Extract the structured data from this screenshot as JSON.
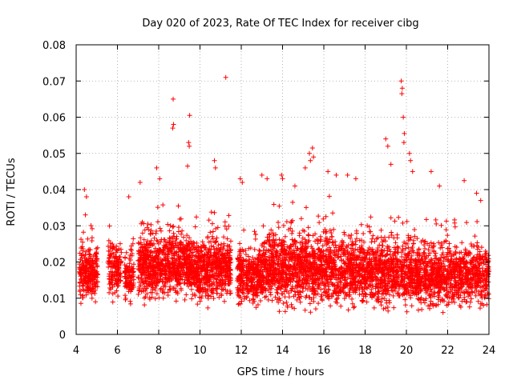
{
  "chart_data": {
    "type": "scatter",
    "title": "Day 020 of 2023, Rate Of TEC Index for receiver cibg",
    "xlabel": "GPS time / hours",
    "ylabel": "ROTI / TECUs",
    "xlim": [
      4,
      24
    ],
    "ylim": [
      0,
      0.08
    ],
    "xticks": [
      "4",
      "6",
      "8",
      "10",
      "12",
      "14",
      "16",
      "18",
      "20",
      "22",
      "24"
    ],
    "yticks": [
      "0",
      "0.01",
      "0.02",
      "0.03",
      "0.04",
      "0.05",
      "0.06",
      "0.07",
      "0.08"
    ],
    "grid": true,
    "marker": "+",
    "color": "#ff0000",
    "series": [
      {
        "name": "ROTI",
        "segments": [
          {
            "x0": 4.15,
            "x1": 5.05,
            "base": 0.017,
            "spread": 0.007,
            "n": 260
          },
          {
            "x0": 5.55,
            "x1": 6.2,
            "base": 0.018,
            "spread": 0.007,
            "n": 150
          },
          {
            "x0": 6.35,
            "x1": 6.8,
            "base": 0.016,
            "spread": 0.006,
            "n": 110
          },
          {
            "x0": 7.0,
            "x1": 9.5,
            "base": 0.019,
            "spread": 0.008,
            "n": 800
          },
          {
            "x0": 9.5,
            "x1": 11.5,
            "base": 0.018,
            "spread": 0.008,
            "n": 650
          },
          {
            "x0": 11.8,
            "x1": 13.0,
            "base": 0.016,
            "spread": 0.007,
            "n": 360
          },
          {
            "x0": 13.0,
            "x1": 16.5,
            "base": 0.018,
            "spread": 0.009,
            "n": 1050
          },
          {
            "x0": 16.5,
            "x1": 20.5,
            "base": 0.017,
            "spread": 0.009,
            "n": 1100
          },
          {
            "x0": 20.5,
            "x1": 24.0,
            "base": 0.016,
            "spread": 0.008,
            "n": 950
          }
        ],
        "spikes": [
          {
            "x": 4.4,
            "y": 0.04
          },
          {
            "x": 4.5,
            "y": 0.038
          },
          {
            "x": 4.45,
            "y": 0.033
          },
          {
            "x": 6.55,
            "y": 0.038
          },
          {
            "x": 7.1,
            "y": 0.042
          },
          {
            "x": 7.9,
            "y": 0.046
          },
          {
            "x": 8.05,
            "y": 0.043
          },
          {
            "x": 8.7,
            "y": 0.065
          },
          {
            "x": 8.72,
            "y": 0.058
          },
          {
            "x": 8.68,
            "y": 0.057
          },
          {
            "x": 9.4,
            "y": 0.0465
          },
          {
            "x": 9.5,
            "y": 0.0605
          },
          {
            "x": 9.45,
            "y": 0.053
          },
          {
            "x": 9.48,
            "y": 0.052
          },
          {
            "x": 10.7,
            "y": 0.048
          },
          {
            "x": 10.75,
            "y": 0.046
          },
          {
            "x": 11.25,
            "y": 0.071
          },
          {
            "x": 11.95,
            "y": 0.043
          },
          {
            "x": 12.05,
            "y": 0.042
          },
          {
            "x": 13.0,
            "y": 0.044
          },
          {
            "x": 13.25,
            "y": 0.043
          },
          {
            "x": 13.95,
            "y": 0.044
          },
          {
            "x": 14.0,
            "y": 0.043
          },
          {
            "x": 14.6,
            "y": 0.041
          },
          {
            "x": 15.1,
            "y": 0.046
          },
          {
            "x": 15.3,
            "y": 0.05
          },
          {
            "x": 15.45,
            "y": 0.0515
          },
          {
            "x": 15.5,
            "y": 0.049
          },
          {
            "x": 15.35,
            "y": 0.048
          },
          {
            "x": 16.2,
            "y": 0.045
          },
          {
            "x": 16.6,
            "y": 0.044
          },
          {
            "x": 17.15,
            "y": 0.044
          },
          {
            "x": 17.55,
            "y": 0.043
          },
          {
            "x": 19.0,
            "y": 0.054
          },
          {
            "x": 19.1,
            "y": 0.052
          },
          {
            "x": 19.25,
            "y": 0.047
          },
          {
            "x": 19.75,
            "y": 0.07
          },
          {
            "x": 19.8,
            "y": 0.068
          },
          {
            "x": 19.78,
            "y": 0.0665
          },
          {
            "x": 19.85,
            "y": 0.06
          },
          {
            "x": 19.9,
            "y": 0.0555
          },
          {
            "x": 19.88,
            "y": 0.053
          },
          {
            "x": 20.15,
            "y": 0.05
          },
          {
            "x": 20.2,
            "y": 0.048
          },
          {
            "x": 20.3,
            "y": 0.045
          },
          {
            "x": 21.2,
            "y": 0.045
          },
          {
            "x": 21.6,
            "y": 0.041
          },
          {
            "x": 22.8,
            "y": 0.0425
          },
          {
            "x": 23.4,
            "y": 0.039
          },
          {
            "x": 23.6,
            "y": 0.037
          }
        ]
      }
    ]
  }
}
